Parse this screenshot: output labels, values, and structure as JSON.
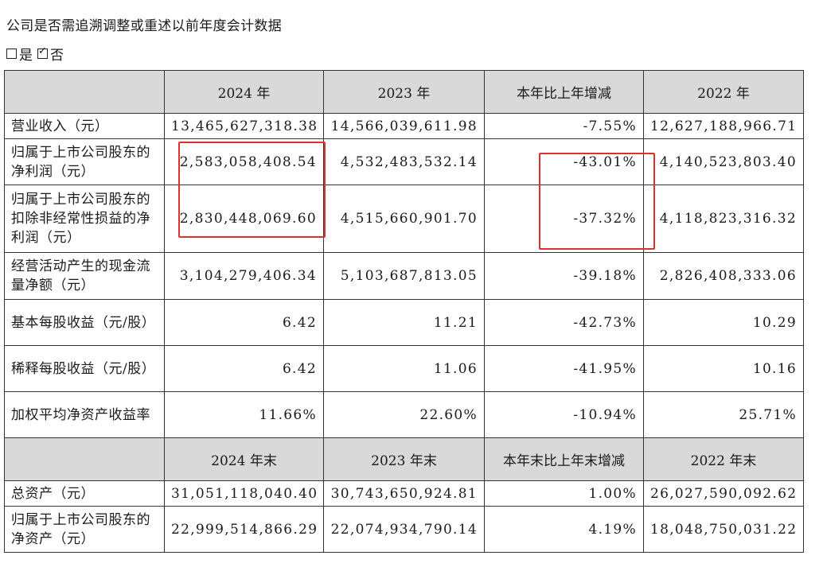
{
  "question": "公司是否需追溯调整或重述以前年度会计数据",
  "options": [
    {
      "label": "是",
      "checked": false
    },
    {
      "label": "否",
      "checked": true
    }
  ],
  "header": [
    "",
    "2024 年",
    "2023 年",
    "本年比上年增减",
    "2022 年"
  ],
  "rows": [
    {
      "label": "营业收入（元）",
      "values": [
        "13,465,627,318.38",
        "14,566,039,611.98",
        "-7.55%",
        "12,627,188,966.71"
      ]
    },
    {
      "label": "归属于上市公司股东的净利润（元）",
      "values": [
        "2,583,058,408.54",
        "4,532,483,532.14",
        "-43.01%",
        "4,140,523,803.40"
      ]
    },
    {
      "label": "归属于上市公司股东的扣除非经常性损益的净利润（元）",
      "values": [
        "2,830,448,069.60",
        "4,515,660,901.70",
        "-37.32%",
        "4,118,823,316.32"
      ]
    },
    {
      "label": "经营活动产生的现金流量净额（元）",
      "values": [
        "3,104,279,406.34",
        "5,103,687,813.05",
        "-39.18%",
        "2,826,408,333.06"
      ]
    },
    {
      "label": "基本每股收益（元/股）",
      "values": [
        "6.42",
        "11.21",
        "-42.73%",
        "10.29"
      ]
    },
    {
      "label": "稀释每股收益（元/股）",
      "values": [
        "6.42",
        "11.06",
        "-41.95%",
        "10.16"
      ]
    },
    {
      "label": "加权平均净资产收益率",
      "values": [
        "11.66%",
        "22.60%",
        "-10.94%",
        "25.71%"
      ]
    }
  ],
  "header2": [
    "",
    "2024 年末",
    "2023 年末",
    "本年末比上年末增减",
    "2022 年末"
  ],
  "rows2": [
    {
      "label": "总资产（元）",
      "values": [
        "31,051,118,040.40",
        "30,743,650,924.81",
        "1.00%",
        "26,027,590,092.62"
      ]
    },
    {
      "label": "归属于上市公司股东的净资产（元）",
      "values": [
        "22,999,514,866.29",
        "22,074,934,790.14",
        "4.19%",
        "18,048,750,031.22"
      ]
    }
  ],
  "colors": {
    "header_bg": "#d9d9d9",
    "highlight": "#e0302b",
    "border": "#333333"
  }
}
